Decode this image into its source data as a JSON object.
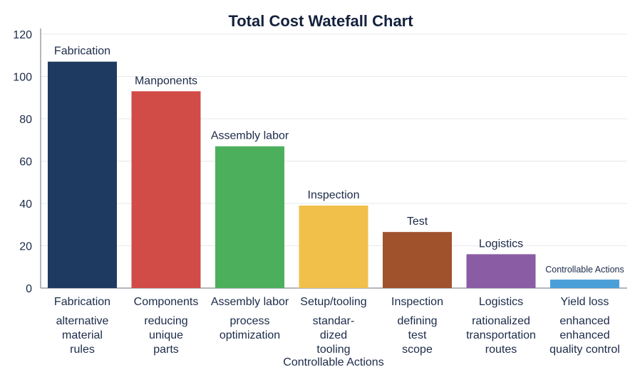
{
  "chart_data": {
    "type": "bar",
    "title": "Total Cost Watefall Chart",
    "xlabel": "",
    "ylabel": "",
    "ylim": [
      0,
      120
    ],
    "yticks": [
      0,
      20,
      40,
      60,
      80,
      100,
      120
    ],
    "grid": true,
    "categories": [
      "Fabrication",
      "Components",
      "Assembly labor",
      "Setup/tooling",
      "Inspection",
      "Logistics",
      "Yield loss"
    ],
    "values": [
      107,
      93,
      67,
      39,
      26.5,
      16,
      4
    ],
    "bar_labels": [
      "Fabrication",
      "Manponents",
      "Assembly labor",
      "Inspection",
      "Test",
      "Logistics",
      "Controllable Actions"
    ],
    "sub_labels": [
      [
        "alternative",
        "material",
        "rules"
      ],
      [
        "reducing",
        "unique",
        "parts"
      ],
      [
        "process",
        "optimization"
      ],
      [
        "standar-",
        "dized",
        "tooling",
        "Controllable Actions"
      ],
      [
        "defining",
        "test",
        "scope"
      ],
      [
        "rationalized",
        "transportation",
        "routes"
      ],
      [
        "enhanced",
        "enhanced",
        "quality control"
      ]
    ],
    "colors": [
      "#1f3a60",
      "#d14b47",
      "#4caf5c",
      "#f0c04a",
      "#a0522d",
      "#8a5ca3",
      "#4a9fd8"
    ]
  }
}
